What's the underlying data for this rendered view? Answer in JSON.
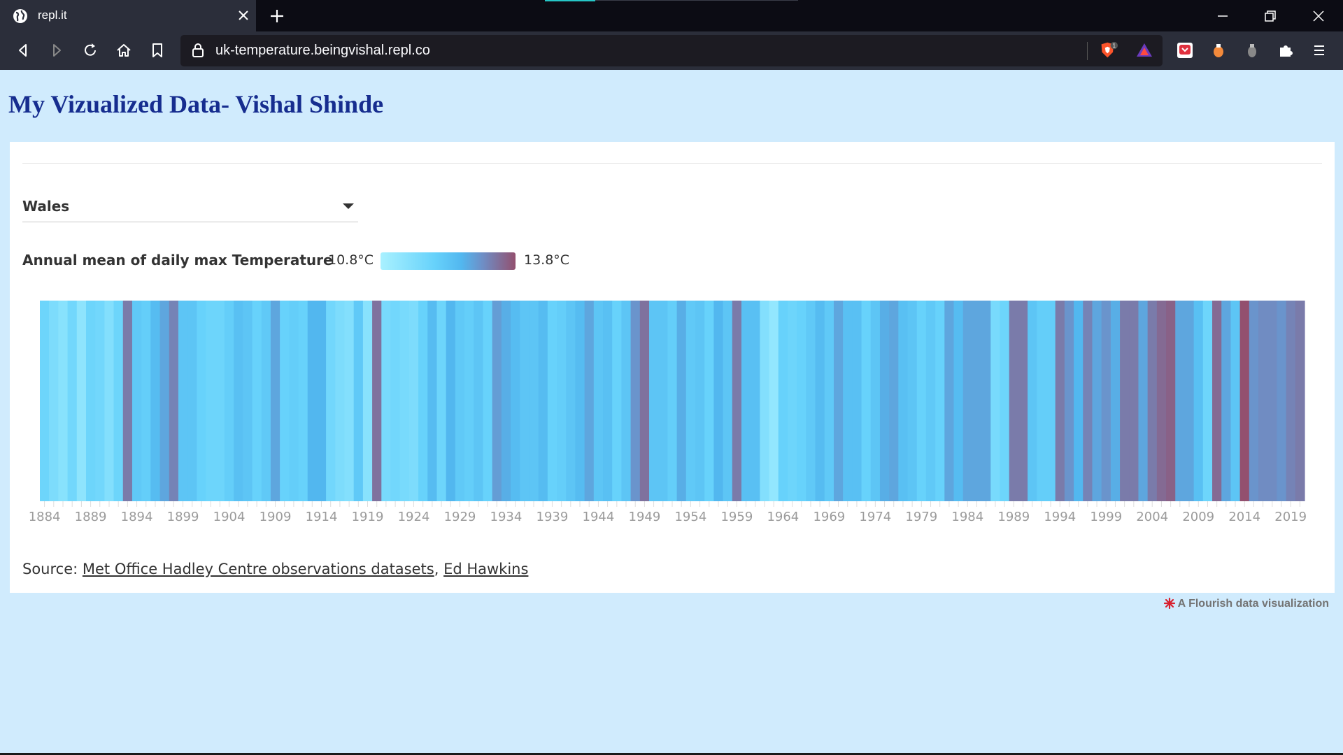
{
  "browser": {
    "tab_title": "repl.it",
    "url": "uk-temperature.beingvishal.repl.co",
    "brave_badge": "1"
  },
  "page": {
    "title": "My Vizualized Data- Vishal Shinde"
  },
  "selector": {
    "selected": "Wales"
  },
  "legend": {
    "title": "Annual mean of daily max Temperature",
    "min_label": "10.8°C",
    "max_label": "13.8°C"
  },
  "source": {
    "prefix": "Source: ",
    "link1": "Met Office Hadley Centre observations datasets",
    "separator": ", ",
    "link2": "Ed Hawkins"
  },
  "footer": {
    "flourish": "A Flourish data visualization"
  },
  "colors": {
    "cold": "#a9f1ff",
    "mid": "#55bdf4",
    "warm": "#93506f"
  },
  "chart_data": {
    "type": "heatmap",
    "title": "Annual mean of daily max Temperature",
    "x_start": 1884,
    "x_end": 2020,
    "value_range": [
      10.8,
      13.8
    ],
    "value_unit": "°C",
    "tick_labels": [
      "1884",
      "1889",
      "1894",
      "1899",
      "1904",
      "1909",
      "1914",
      "1919",
      "1924",
      "1929",
      "1934",
      "1939",
      "1944",
      "1949",
      "1954",
      "1959",
      "1964",
      "1969",
      "1974",
      "1979",
      "1984",
      "1989",
      "1994",
      "1999",
      "2004",
      "2009",
      "2014",
      "2019"
    ],
    "years": [
      1884,
      1885,
      1886,
      1887,
      1888,
      1889,
      1890,
      1891,
      1892,
      1893,
      1894,
      1895,
      1896,
      1897,
      1898,
      1899,
      1900,
      1901,
      1902,
      1903,
      1904,
      1905,
      1906,
      1907,
      1908,
      1909,
      1910,
      1911,
      1912,
      1913,
      1914,
      1915,
      1916,
      1917,
      1918,
      1919,
      1920,
      1921,
      1922,
      1923,
      1924,
      1925,
      1926,
      1927,
      1928,
      1929,
      1930,
      1931,
      1932,
      1933,
      1934,
      1935,
      1936,
      1937,
      1938,
      1939,
      1940,
      1941,
      1942,
      1943,
      1944,
      1945,
      1946,
      1947,
      1948,
      1949,
      1950,
      1951,
      1952,
      1953,
      1954,
      1955,
      1956,
      1957,
      1958,
      1959,
      1960,
      1961,
      1962,
      1963,
      1964,
      1965,
      1966,
      1967,
      1968,
      1969,
      1970,
      1971,
      1972,
      1973,
      1974,
      1975,
      1976,
      1977,
      1978,
      1979,
      1980,
      1981,
      1982,
      1983,
      1984,
      1985,
      1986,
      1987,
      1988,
      1989,
      1990,
      1991,
      1992,
      1993,
      1994,
      1995,
      1996,
      1997,
      1998,
      1999,
      2000,
      2001,
      2002,
      2003,
      2004,
      2005,
      2006,
      2007,
      2008,
      2009,
      2010,
      2011,
      2012,
      2013,
      2014,
      2015,
      2016,
      2017,
      2018,
      2019,
      2020
    ],
    "values": [
      11.9,
      11.6,
      11.4,
      11.8,
      11.3,
      11.9,
      11.8,
      11.5,
      11.9,
      13.3,
      12.2,
      12.1,
      12.5,
      12.8,
      13.2,
      12.3,
      12.3,
      12.0,
      11.9,
      11.9,
      12.1,
      12.4,
      12.3,
      12.0,
      12.2,
      12.8,
      12.0,
      12.1,
      12.0,
      12.6,
      12.6,
      11.8,
      11.6,
      11.5,
      12.2,
      11.4,
      13.4,
      11.7,
      11.8,
      11.7,
      11.6,
      12.0,
      12.5,
      11.9,
      12.6,
      12.2,
      12.1,
      12.3,
      12.0,
      12.9,
      12.7,
      12.5,
      12.3,
      12.3,
      12.5,
      12.0,
      12.1,
      12.3,
      12.5,
      12.8,
      12.3,
      12.4,
      12.0,
      12.3,
      13.0,
      13.4,
      12.3,
      12.3,
      12.1,
      12.7,
      12.2,
      12.3,
      12.0,
      12.6,
      12.3,
      13.3,
      12.4,
      12.4,
      11.5,
      11.2,
      12.0,
      11.9,
      12.0,
      12.2,
      12.5,
      12.2,
      12.8,
      12.4,
      12.4,
      12.0,
      12.3,
      12.7,
      12.8,
      12.4,
      12.3,
      12.0,
      12.2,
      12.0,
      12.8,
      12.5,
      12.8,
      12.8,
      12.8,
      11.7,
      11.9,
      13.3,
      13.3,
      12.3,
      12.1,
      12.1,
      13.3,
      13.0,
      12.6,
      13.2,
      12.8,
      13.0,
      12.7,
      13.3,
      13.3,
      12.8,
      13.3,
      13.5,
      13.6,
      12.8,
      12.8,
      12.4,
      11.9,
      13.5,
      12.8,
      12.3,
      13.8,
      13.0,
      13.1,
      13.1,
      13.0,
      13.2,
      13.3
    ]
  }
}
